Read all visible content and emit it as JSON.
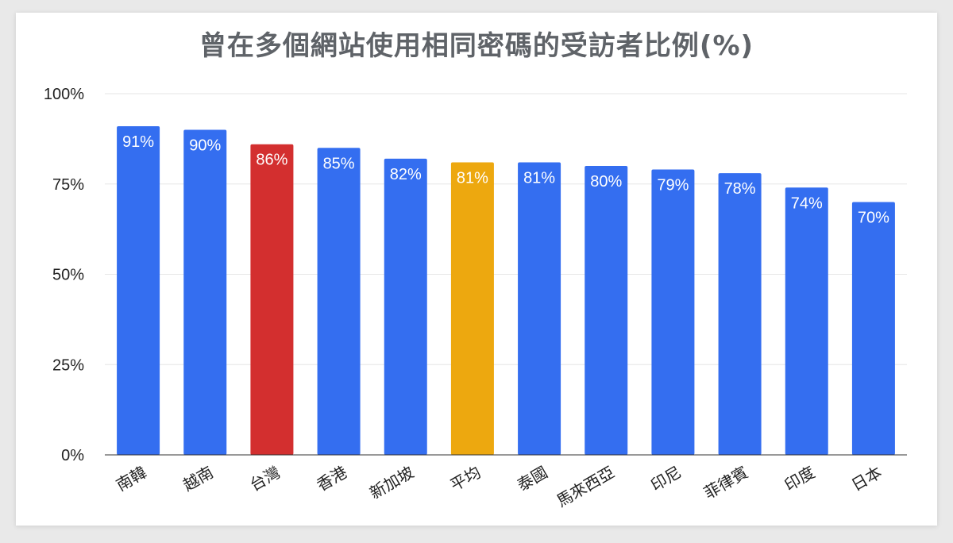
{
  "chart_data": {
    "type": "bar",
    "title": "曾在多個網站使用相同密碼的受訪者比例(%)",
    "categories": [
      "南韓",
      "越南",
      "台灣",
      "香港",
      "新加坡",
      "平均",
      "泰國",
      "馬來西亞",
      "印尼",
      "菲律賓",
      "印度",
      "日本"
    ],
    "values": [
      91,
      90,
      86,
      85,
      82,
      81,
      81,
      80,
      79,
      78,
      74,
      70
    ],
    "data_labels": [
      "91%",
      "90%",
      "86%",
      "85%",
      "82%",
      "81%",
      "81%",
      "80%",
      "79%",
      "78%",
      "74%",
      "70%"
    ],
    "ylim": [
      0,
      100
    ],
    "yticks": [
      0,
      25,
      50,
      75,
      100
    ],
    "ytick_labels": [
      "0%",
      "25%",
      "50%",
      "75%",
      "100%"
    ],
    "xlabel": "",
    "ylabel": "",
    "grid": true,
    "colors": {
      "default": "#346ef0",
      "highlight_台灣": "#d32f2f",
      "highlight_平均": "#eda80f",
      "grid": "#e6e6e6",
      "axis": "#333333"
    },
    "bar_colors": [
      "#346ef0",
      "#346ef0",
      "#d32f2f",
      "#346ef0",
      "#346ef0",
      "#eda80f",
      "#346ef0",
      "#346ef0",
      "#346ef0",
      "#346ef0",
      "#346ef0",
      "#346ef0"
    ]
  }
}
